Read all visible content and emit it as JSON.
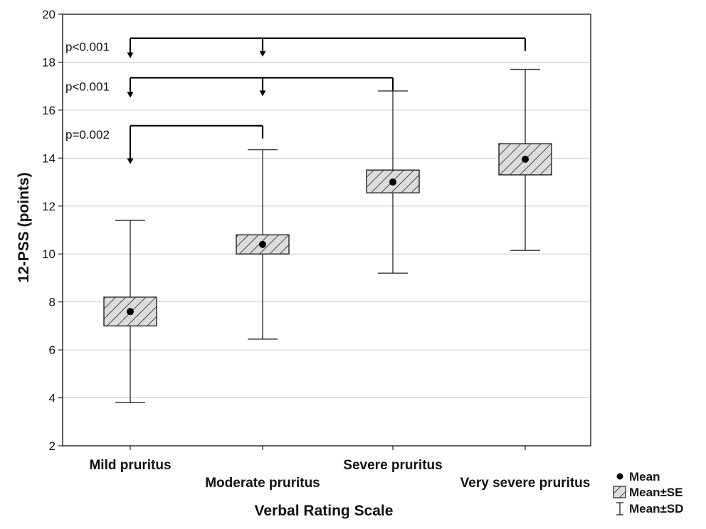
{
  "chart_data": {
    "type": "box",
    "xlabel": "Verbal Rating Scale",
    "ylabel": "12-PSS (points)",
    "ylim": [
      2,
      20
    ],
    "yticks": [
      2,
      4,
      6,
      8,
      10,
      12,
      14,
      16,
      18,
      20
    ],
    "grid": true,
    "categories": [
      "Mild pruritus",
      "Moderate pruritus",
      "Severe pruritus",
      "Very severe pruritus"
    ],
    "groups": [
      {
        "category": "Mild pruritus",
        "mean": 7.6,
        "se_low": 7.0,
        "se_high": 8.2,
        "sd_low": 3.8,
        "sd_high": 11.4
      },
      {
        "category": "Moderate pruritus",
        "mean": 10.4,
        "se_low": 10.0,
        "se_high": 10.8,
        "sd_low": 6.45,
        "sd_high": 14.35
      },
      {
        "category": "Severe pruritus",
        "mean": 13.0,
        "se_low": 12.55,
        "se_high": 13.5,
        "sd_low": 9.2,
        "sd_high": 16.8
      },
      {
        "category": "Very severe pruritus",
        "mean": 13.95,
        "se_low": 13.3,
        "se_high": 14.6,
        "sd_low": 10.15,
        "sd_high": 17.7
      }
    ],
    "annotations": [
      {
        "label": "p<0.001",
        "level": 19.0,
        "from": 0,
        "to": 3,
        "arrows": [
          0,
          1
        ]
      },
      {
        "label": "p<0.001",
        "level": 17.35,
        "from": 0,
        "to": 2,
        "arrows": [
          0,
          1
        ]
      },
      {
        "label": "p=0.002",
        "level": 15.35,
        "from": 0,
        "to": 1,
        "arrows": [
          0
        ]
      }
    ],
    "legend": {
      "placement": "bottom-right",
      "items": [
        {
          "symbol": "dot",
          "label": "Mean"
        },
        {
          "symbol": "hatched-box",
          "label": "Mean±SE"
        },
        {
          "symbol": "whisker",
          "label": "Mean±SD"
        }
      ]
    }
  }
}
